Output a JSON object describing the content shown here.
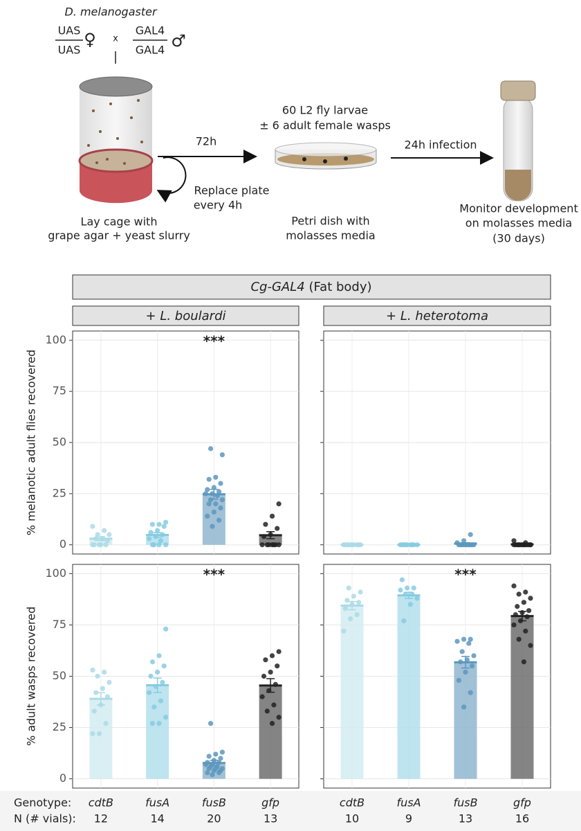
{
  "schematic": {
    "species": "D. melanogaster",
    "female_top": "UAS",
    "female_bottom": "UAS",
    "female_symbol": "♀",
    "cross": "x",
    "male_top": "GAL4",
    "male_bottom": "GAL4",
    "male_symbol": "♂",
    "step1_arrow": "72h",
    "replace_line1": "Replace plate",
    "replace_line2": "every 4h",
    "infection_line1": "60 L2 fly larvae",
    "infection_line2": "± 6 adult female wasps",
    "step2_arrow": "24h infection",
    "cage_line1": "Lay cage with",
    "cage_line2": "grape agar + yeast slurry",
    "dish_line1": "Petri dish with",
    "dish_line2": "molasses media",
    "monitor_line1": "Monitor development",
    "monitor_line2": "on molasses media",
    "monitor_line3": "(30 days)"
  },
  "figure": {
    "title_italic": "Cg-GAL4",
    "title_rest": "(Fat body)",
    "genotype_label": "Genotype:",
    "n_label": "N (# vials):",
    "columns": [
      {
        "strip_prefix": "+",
        "strip_species": "L. boulardi",
        "categories": [
          "cdtB",
          "fusA",
          "fusB",
          "gfp"
        ],
        "n": [
          12,
          14,
          20,
          13
        ]
      },
      {
        "strip_prefix": "+",
        "strip_species": "L. heterotoma",
        "categories": [
          "cdtB",
          "fusA",
          "fusB",
          "gfp"
        ],
        "n": [
          10,
          9,
          13,
          16
        ]
      }
    ]
  },
  "chart_data": [
    {
      "type": "bar",
      "ylabel": "% melanotic adult flies recovered",
      "ylim": [
        -4.5,
        104.5
      ],
      "yticks": [
        0,
        25,
        50,
        75,
        100
      ],
      "grid": true,
      "colors": [
        "#d3ecf1",
        "#b3dfec",
        "#8fb6cf",
        "#6e6e6e"
      ],
      "point_colors": [
        "#aadbe6",
        "#86cbe2",
        "#5d97bd",
        "#222222"
      ],
      "values": [
        3,
        4.8,
        24.7,
        4.7
      ],
      "errors": [
        1,
        1.1,
        2.4,
        1.7
      ],
      "significance": [
        null,
        null,
        "***",
        null
      ],
      "points": [
        [
          0,
          0,
          0,
          0,
          0,
          2,
          3,
          3,
          5,
          5,
          7,
          9
        ],
        [
          0,
          0,
          0,
          0,
          2,
          3,
          4,
          5,
          6,
          7,
          9,
          10,
          10,
          11
        ],
        [
          9,
          12,
          14,
          16,
          18,
          20,
          20,
          22,
          22,
          24,
          25,
          25,
          26,
          27,
          28,
          30,
          32,
          33,
          44,
          47
        ],
        [
          0,
          0,
          0,
          0,
          0,
          0,
          0,
          4,
          5,
          8,
          10,
          14,
          20
        ]
      ]
    },
    {
      "type": "bar",
      "ylim": [
        -4.5,
        104.5
      ],
      "yticks": [
        0,
        25,
        50,
        75,
        100
      ],
      "grid": true,
      "colors": [
        "#d3ecf1",
        "#b3dfec",
        "#8fb6cf",
        "#6e6e6e"
      ],
      "point_colors": [
        "#aadbe6",
        "#86cbe2",
        "#5d97bd",
        "#222222"
      ],
      "values": [
        0,
        0,
        0.6,
        0.2
      ],
      "errors": [
        0,
        0,
        0.4,
        0.2
      ],
      "points": [
        [
          0,
          0,
          0,
          0,
          0,
          0,
          0,
          0,
          0,
          0
        ],
        [
          0,
          0,
          0,
          0,
          0,
          0,
          0,
          0,
          0
        ],
        [
          0,
          0,
          0,
          0,
          0,
          0,
          0,
          0,
          0,
          0,
          1,
          2,
          5
        ],
        [
          0,
          0,
          0,
          0,
          0,
          0,
          0,
          0,
          0,
          0,
          0,
          0,
          0,
          0,
          1,
          2
        ]
      ]
    },
    {
      "type": "bar",
      "ylabel": "% adult wasps recovered",
      "ylim": [
        -4.5,
        104.5
      ],
      "yticks": [
        0,
        25,
        50,
        75,
        100
      ],
      "grid": true,
      "colors": [
        "#d3ecf1",
        "#b3dfec",
        "#8fb6cf",
        "#6e6e6e"
      ],
      "point_colors": [
        "#aadbe6",
        "#86cbe2",
        "#5d97bd",
        "#222222"
      ],
      "values": [
        39,
        45.6,
        7.75,
        45.5
      ],
      "errors": [
        3,
        3.5,
        1.3,
        3.3
      ],
      "significance": [
        null,
        null,
        "***",
        null
      ],
      "points": [
        [
          22,
          22,
          27,
          33,
          36,
          40,
          42,
          44,
          47,
          50,
          52,
          53
        ],
        [
          27,
          27,
          30,
          35,
          38,
          42,
          45,
          47,
          50,
          52,
          55,
          57,
          60,
          73
        ],
        [
          2,
          3,
          3,
          4,
          4,
          5,
          5,
          5,
          6,
          6,
          7,
          7,
          8,
          8,
          9,
          10,
          11,
          12,
          13,
          27
        ],
        [
          27,
          30,
          33,
          36,
          40,
          43,
          46,
          50,
          52,
          55,
          58,
          60,
          62
        ]
      ]
    },
    {
      "type": "bar",
      "ylim": [
        -4.5,
        104.5
      ],
      "yticks": [
        0,
        25,
        50,
        75,
        100
      ],
      "grid": true,
      "colors": [
        "#d3ecf1",
        "#b3dfec",
        "#8fb6cf",
        "#6e6e6e"
      ],
      "point_colors": [
        "#aadbe6",
        "#86cbe2",
        "#5d97bd",
        "#222222"
      ],
      "values": [
        84.4,
        89.4,
        56.8,
        79.3
      ],
      "errors": [
        2,
        1.5,
        2.8,
        2.3
      ],
      "significance": [
        null,
        null,
        "***",
        null
      ],
      "points": [
        [
          72,
          78,
          80,
          83,
          85,
          86,
          87,
          89,
          91,
          93
        ],
        [
          77,
          85,
          88,
          90,
          90,
          92,
          93,
          93,
          97
        ],
        [
          35,
          42,
          48,
          52,
          55,
          57,
          58,
          60,
          62,
          66,
          67,
          68,
          68
        ],
        [
          57,
          65,
          68,
          72,
          75,
          77,
          79,
          80,
          81,
          82,
          84,
          86,
          88,
          90,
          91,
          94
        ]
      ]
    }
  ]
}
